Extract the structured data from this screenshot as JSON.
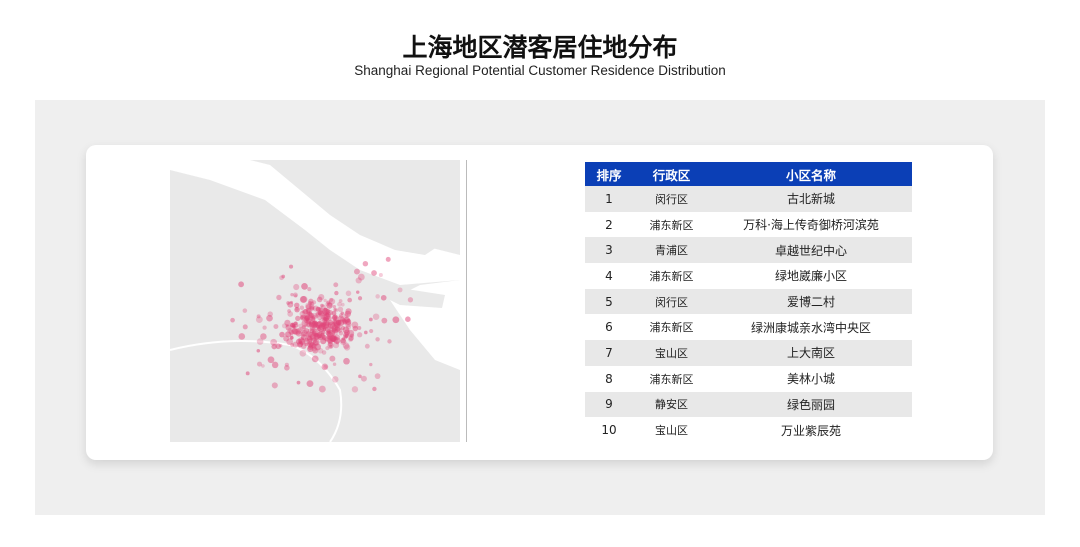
{
  "header": {
    "title": "上海地区潜客居住地分布",
    "subtitle": "Shanghai Regional Potential Customer Residence Distribution"
  },
  "map": {
    "land_color": "#e9e9e9",
    "water_color": "#ffffff",
    "dot_color": "#e0467a"
  },
  "table": {
    "headers": [
      "排序",
      "行政区",
      "小区名称"
    ],
    "header_color": "#0b3fb6",
    "rows": [
      {
        "rank": "1",
        "district": "闵行区",
        "community": "古北新城"
      },
      {
        "rank": "2",
        "district": "浦东新区",
        "community": "万科·海上传奇御桥河滨苑"
      },
      {
        "rank": "3",
        "district": "青浦区",
        "community": "卓越世纪中心"
      },
      {
        "rank": "4",
        "district": "浦东新区",
        "community": "绿地崴廉小区"
      },
      {
        "rank": "5",
        "district": "闵行区",
        "community": "爱博二村"
      },
      {
        "rank": "6",
        "district": "浦东新区",
        "community": "绿洲康城亲水湾中央区"
      },
      {
        "rank": "7",
        "district": "宝山区",
        "community": "上大南区"
      },
      {
        "rank": "8",
        "district": "浦东新区",
        "community": "美林小城"
      },
      {
        "rank": "9",
        "district": "静安区",
        "community": "绿色丽园"
      },
      {
        "rank": "10",
        "district": "宝山区",
        "community": "万业紫辰苑"
      }
    ]
  }
}
